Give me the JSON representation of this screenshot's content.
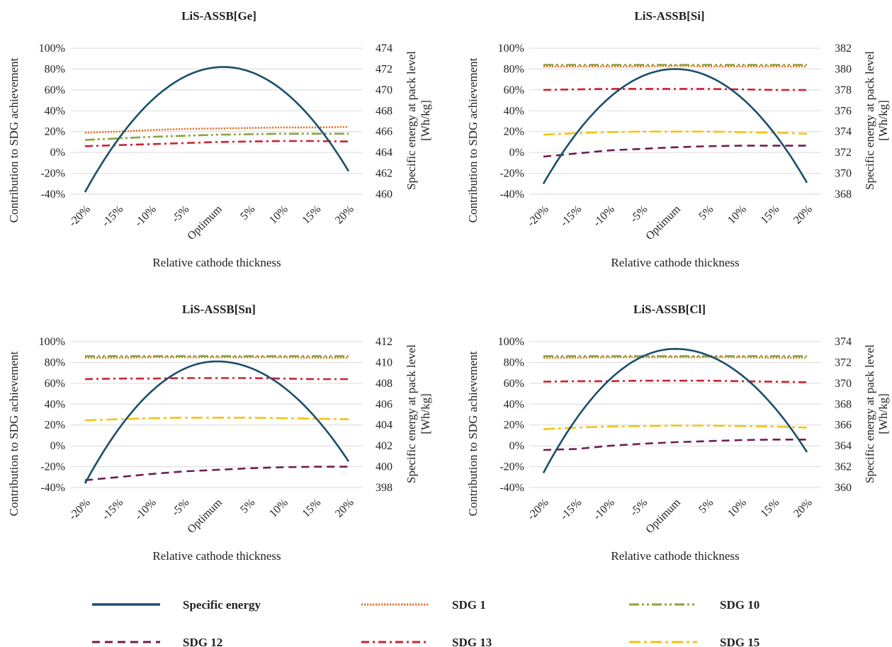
{
  "legend": {
    "items": [
      {
        "key": "energy",
        "label": "Specific energy",
        "color": "#1b4f6b",
        "dash": "solid"
      },
      {
        "key": "sdg1",
        "label": "SDG 1",
        "color": "#e8742a",
        "dash": "dotted"
      },
      {
        "key": "sdg10",
        "label": "SDG 10",
        "color": "#8aa33d",
        "dash": "dashdotdot"
      },
      {
        "key": "sdg12",
        "label": "SDG 12",
        "color": "#6e1e4c",
        "dash": "dashed"
      },
      {
        "key": "sdg13",
        "label": "SDG 13",
        "color": "#cc2233",
        "dash": "dashdot"
      },
      {
        "key": "sdg15",
        "label": "SDG 15",
        "color": "#f2c414",
        "dash": "longdashdot"
      }
    ]
  },
  "chart_data": [
    {
      "type": "line",
      "title": "LiS-ASSB[Ge]",
      "xlabel": "Relative cathode thickness",
      "ylabel": "Contribution to SDG achievement",
      "y2label_line1": "Specific energy at pack level",
      "y2label_line2": "[Wh/kg]",
      "categories": [
        "-20%",
        "-15%",
        "-10%",
        "-5%",
        "Optimum",
        "5%",
        "10%",
        "15%",
        "20%"
      ],
      "ylim": [
        -40,
        100
      ],
      "yticks": [
        -40,
        -20,
        0,
        20,
        40,
        60,
        80,
        100
      ],
      "ytick_labels": [
        "-40%",
        "-20%",
        "0%",
        "20%",
        "40%",
        "60%",
        "80%",
        "100%"
      ],
      "y2lim": [
        460,
        474
      ],
      "y2ticks": [
        460,
        462,
        464,
        466,
        468,
        470,
        472,
        474
      ],
      "y2tick_labels": [
        "460",
        "462",
        "464",
        "466",
        "468",
        "470",
        "472",
        "474"
      ],
      "energy_curve": {
        "left": 460.2,
        "peak": 472.2,
        "peak_at": 4.2,
        "right": 462.2
      },
      "series": [
        {
          "key": "sdg1",
          "name": "SDG 1",
          "values": [
            19,
            20,
            21.5,
            22.5,
            23,
            23.5,
            24,
            24,
            24.5
          ]
        },
        {
          "key": "sdg10",
          "name": "SDG 10",
          "values": [
            12,
            13.5,
            15,
            16,
            17,
            17.5,
            18,
            18,
            18
          ]
        },
        {
          "key": "sdg13",
          "name": "SDG 13",
          "values": [
            6,
            7,
            8,
            9,
            10,
            10.5,
            11,
            11,
            10.5
          ]
        }
      ],
      "grid": true
    },
    {
      "type": "line",
      "title": "LiS-ASSB[Si]",
      "xlabel": "Relative cathode thickness",
      "ylabel": "Contribution to SDG achievement",
      "y2label_line1": "Specific energy at pack level",
      "y2label_line2": "[Wh/kg]",
      "categories": [
        "-20%",
        "-15%",
        "-10%",
        "-5%",
        "Optimum",
        "5%",
        "10%",
        "15%",
        "20%"
      ],
      "ylim": [
        -40,
        100
      ],
      "yticks": [
        -40,
        -20,
        0,
        20,
        40,
        60,
        80,
        100
      ],
      "ytick_labels": [
        "-40%",
        "-20%",
        "0%",
        "20%",
        "40%",
        "60%",
        "80%",
        "100%"
      ],
      "y2lim": [
        368,
        382
      ],
      "y2ticks": [
        368,
        370,
        372,
        374,
        376,
        378,
        380,
        382
      ],
      "y2tick_labels": [
        "368",
        "370",
        "372",
        "374",
        "376",
        "378",
        "380",
        "382"
      ],
      "energy_curve": {
        "left": 369,
        "peak": 380,
        "peak_at": 4.0,
        "right": 369.1
      },
      "series": [
        {
          "key": "sdg1",
          "name": "SDG 1",
          "values": [
            82.5,
            82.5,
            82.5,
            82.5,
            83,
            82.5,
            82.5,
            82.5,
            82.5
          ]
        },
        {
          "key": "sdg10",
          "name": "SDG 10",
          "values": [
            84,
            84,
            84,
            84,
            84,
            84,
            84,
            84,
            84
          ]
        },
        {
          "key": "sdg12",
          "name": "SDG 12",
          "values": [
            -4,
            -1,
            2,
            3.5,
            5,
            6,
            6.5,
            6.5,
            6.5
          ]
        },
        {
          "key": "sdg13",
          "name": "SDG 13",
          "values": [
            60,
            60.5,
            61,
            61,
            61,
            61,
            60.5,
            60,
            60
          ]
        },
        {
          "key": "sdg15",
          "name": "SDG 15",
          "values": [
            17,
            18.5,
            19.5,
            20,
            20,
            20,
            19.5,
            19,
            18
          ]
        }
      ],
      "grid": true
    },
    {
      "type": "line",
      "title": "LiS-ASSB[Sn]",
      "xlabel": "Relative cathode thickness",
      "ylabel": "Contribution to SDG achievement",
      "y2label_line1": "Specific energy at pack level",
      "y2label_line2": "[Wh/kg]",
      "categories": [
        "-20%",
        "-15%",
        "-10%",
        "-5%",
        "Optimum",
        "5%",
        "10%",
        "15%",
        "20%"
      ],
      "ylim": [
        -40,
        100
      ],
      "yticks": [
        -40,
        -20,
        0,
        20,
        40,
        60,
        80,
        100
      ],
      "ytick_labels": [
        "-40%",
        "-20%",
        "0%",
        "20%",
        "40%",
        "60%",
        "80%",
        "100%"
      ],
      "y2lim": [
        398,
        412
      ],
      "y2ticks": [
        398,
        400,
        402,
        404,
        406,
        408,
        410,
        412
      ],
      "y2tick_labels": [
        "398",
        "400",
        "402",
        "404",
        "406",
        "408",
        "410",
        "412"
      ],
      "energy_curve": {
        "left": 398.4,
        "peak": 410.1,
        "peak_at": 4.0,
        "right": 400.5
      },
      "series": [
        {
          "key": "sdg1",
          "name": "SDG 1",
          "values": [
            84.5,
            84.5,
            85,
            85,
            85,
            85,
            85,
            84.5,
            84.5
          ]
        },
        {
          "key": "sdg10",
          "name": "SDG 10",
          "values": [
            86,
            86,
            86,
            86,
            86,
            86,
            86,
            86,
            86
          ]
        },
        {
          "key": "sdg12",
          "name": "SDG 12",
          "values": [
            -33,
            -30,
            -27,
            -24.5,
            -23,
            -21.5,
            -20.5,
            -20,
            -20
          ]
        },
        {
          "key": "sdg13",
          "name": "SDG 13",
          "values": [
            64,
            64.5,
            64.5,
            65,
            65,
            65,
            64.5,
            64,
            64
          ]
        },
        {
          "key": "sdg15",
          "name": "SDG 15",
          "values": [
            24.5,
            25.5,
            26.5,
            27,
            27,
            27,
            26.5,
            26,
            25.5
          ]
        }
      ],
      "grid": true
    },
    {
      "type": "line",
      "title": "LiS-ASSB[Cl]",
      "xlabel": "Relative cathode thickness",
      "ylabel": "Contribution to SDG achievement",
      "y2label_line1": "Specific energy at pack level",
      "y2label_line2": "[Wh/kg]",
      "categories": [
        "-20%",
        "-15%",
        "-10%",
        "-5%",
        "Optimum",
        "5%",
        "10%",
        "15%",
        "20%"
      ],
      "ylim": [
        -40,
        100
      ],
      "yticks": [
        -40,
        -20,
        0,
        20,
        40,
        60,
        80,
        100
      ],
      "ytick_labels": [
        "-40%",
        "-20%",
        "0%",
        "20%",
        "40%",
        "60%",
        "80%",
        "100%"
      ],
      "y2lim": [
        360,
        374
      ],
      "y2ticks": [
        360,
        362,
        364,
        366,
        368,
        370,
        372,
        374
      ],
      "y2tick_labels": [
        "360",
        "362",
        "364",
        "366",
        "368",
        "370",
        "372",
        "374"
      ],
      "energy_curve": {
        "left": 361.4,
        "peak": 373.3,
        "peak_at": 4.0,
        "right": 363.4
      },
      "series": [
        {
          "key": "sdg1",
          "name": "SDG 1",
          "values": [
            84.5,
            84.5,
            85,
            85,
            85,
            85,
            85,
            84.5,
            84.5
          ]
        },
        {
          "key": "sdg10",
          "name": "SDG 10",
          "values": [
            86,
            86,
            86,
            86,
            86,
            86,
            86,
            86,
            86
          ]
        },
        {
          "key": "sdg12",
          "name": "SDG 12",
          "values": [
            -4,
            -3,
            0,
            2,
            3.5,
            4.5,
            5.5,
            6,
            6
          ]
        },
        {
          "key": "sdg13",
          "name": "SDG 13",
          "values": [
            61.5,
            62,
            62,
            62.5,
            62.5,
            62.5,
            62,
            61.5,
            61
          ]
        },
        {
          "key": "sdg15",
          "name": "SDG 15",
          "values": [
            16,
            17.5,
            18.5,
            19,
            19.5,
            19.5,
            19,
            18.5,
            17.5
          ]
        }
      ],
      "grid": true
    }
  ]
}
